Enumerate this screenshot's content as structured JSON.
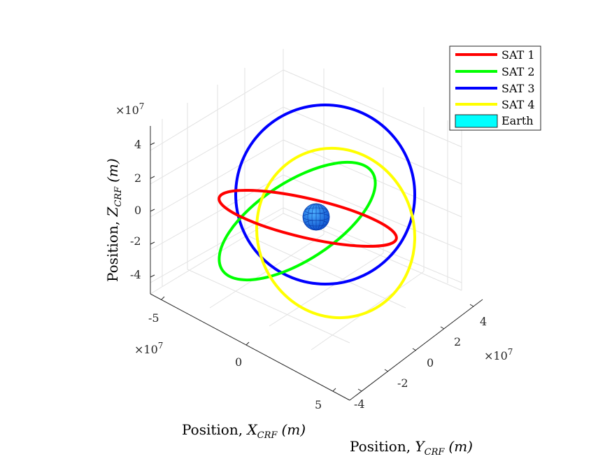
{
  "chart_data": {
    "type": "line3d",
    "title": "",
    "axes": {
      "x": {
        "label_prefix": "Position, ",
        "label_var": "X",
        "label_sub": "CRF",
        "label_unit": "(m)",
        "ticks": [
          "-5",
          "0",
          "5"
        ],
        "multiplier": "×10",
        "multiplier_exp": "7",
        "lim": [
          -6,
          6
        ]
      },
      "y": {
        "label_prefix": "Position, ",
        "label_var": "Y",
        "label_sub": "CRF",
        "label_unit": "(m)",
        "ticks": [
          "-4",
          "-2",
          "0",
          "2",
          "4"
        ],
        "multiplier": "×10",
        "multiplier_exp": "7",
        "lim": [
          -5,
          5
        ]
      },
      "z": {
        "label_prefix": "Position, ",
        "label_var": "Z",
        "label_sub": "CRF",
        "label_unit": "(m)",
        "ticks": [
          "-4",
          "-2",
          "0",
          "2",
          "4"
        ],
        "multiplier": "×10",
        "multiplier_exp": "7",
        "lim": [
          -5,
          5
        ]
      }
    },
    "grid": true,
    "legend_position": "top-right",
    "series": [
      {
        "name": "SAT 1",
        "color": "#ff0000",
        "orbit": "ellipse",
        "approx_radius_1e7m": 4.2
      },
      {
        "name": "SAT 2",
        "color": "#00ff00",
        "orbit": "ellipse",
        "approx_radius_1e7m": 4.2
      },
      {
        "name": "SAT 3",
        "color": "#0000ff",
        "orbit": "circle",
        "approx_radius_1e7m": 4.2
      },
      {
        "name": "SAT 4",
        "color": "#ffff00",
        "orbit": "ellipse",
        "approx_radius_1e7m": 4.2
      }
    ],
    "earth": {
      "name": "Earth",
      "legend_color": "#00ffff",
      "surface_color": "#1e88e5"
    }
  }
}
